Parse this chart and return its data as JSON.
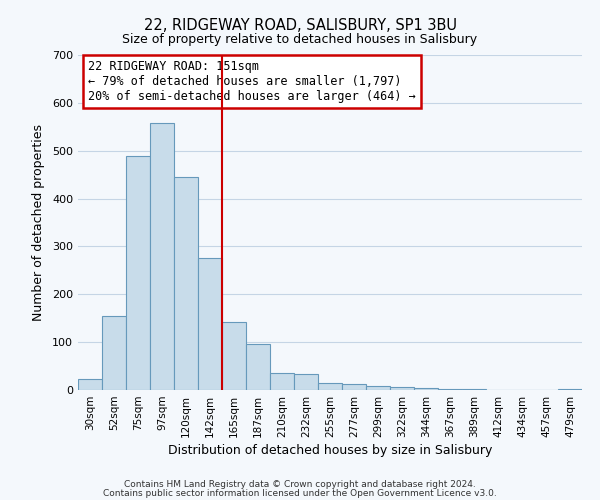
{
  "title": "22, RIDGEWAY ROAD, SALISBURY, SP1 3BU",
  "subtitle": "Size of property relative to detached houses in Salisbury",
  "xlabel": "Distribution of detached houses by size in Salisbury",
  "ylabel": "Number of detached properties",
  "bar_color": "#c8dcea",
  "bar_edge_color": "#6699bb",
  "bg_color": "#f4f8fc",
  "categories": [
    "30sqm",
    "52sqm",
    "75sqm",
    "97sqm",
    "120sqm",
    "142sqm",
    "165sqm",
    "187sqm",
    "210sqm",
    "232sqm",
    "255sqm",
    "277sqm",
    "299sqm",
    "322sqm",
    "344sqm",
    "367sqm",
    "389sqm",
    "412sqm",
    "434sqm",
    "457sqm",
    "479sqm"
  ],
  "values": [
    22,
    155,
    490,
    558,
    445,
    275,
    143,
    97,
    36,
    34,
    15,
    12,
    9,
    6,
    4,
    2,
    2,
    0,
    0,
    0,
    3
  ],
  "ylim": [
    0,
    700
  ],
  "yticks": [
    0,
    100,
    200,
    300,
    400,
    500,
    600,
    700
  ],
  "vline_color": "#cc0000",
  "vline_x": 6,
  "annotation_title": "22 RIDGEWAY ROAD: 151sqm",
  "annotation_line1": "← 79% of detached houses are smaller (1,797)",
  "annotation_line2": "20% of semi-detached houses are larger (464) →",
  "annotation_box_color": "#ffffff",
  "annotation_box_edge_color": "#cc0000",
  "footer_line1": "Contains HM Land Registry data © Crown copyright and database right 2024.",
  "footer_line2": "Contains public sector information licensed under the Open Government Licence v3.0."
}
